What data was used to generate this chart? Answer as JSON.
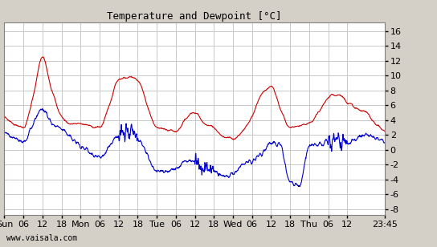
{
  "title": "Temperature and Dewpoint [°C]",
  "yticks": [
    -8,
    -6,
    -4,
    -2,
    0,
    2,
    4,
    6,
    8,
    10,
    12,
    14,
    16
  ],
  "ylim": [
    -8.8,
    17.2
  ],
  "watermark": "www.vaisala.com",
  "temp_color": "#cc0000",
  "dew_color": "#0000cc",
  "bg_color": "#d4d0c8",
  "plot_bg": "#ffffff",
  "grid_color": "#c8c8c8",
  "line_width": 0.8,
  "temp_knots_t": [
    0,
    3,
    6,
    9,
    12,
    15,
    18,
    21,
    24,
    27,
    30,
    33,
    36,
    39,
    42,
    45,
    48,
    51,
    54,
    57,
    60,
    63,
    66,
    69,
    72,
    75,
    78,
    81,
    84,
    87,
    90,
    93,
    96,
    99,
    102,
    105,
    108,
    111,
    114,
    117,
    119.75
  ],
  "temp_knots_v": [
    4.5,
    3.5,
    3.0,
    7.0,
    12.5,
    8.0,
    4.5,
    3.5,
    3.5,
    3.2,
    3.0,
    6.0,
    9.5,
    9.8,
    9.5,
    6.0,
    3.0,
    2.8,
    2.5,
    4.0,
    5.0,
    3.5,
    3.0,
    1.8,
    1.5,
    2.5,
    4.5,
    7.5,
    8.5,
    5.5,
    3.0,
    3.2,
    3.5,
    5.0,
    7.0,
    7.5,
    6.5,
    5.5,
    5.0,
    3.5,
    2.5
  ],
  "dew_knots_t": [
    0,
    3,
    6,
    9,
    12,
    15,
    18,
    21,
    24,
    27,
    30,
    33,
    36,
    39,
    42,
    45,
    48,
    51,
    54,
    57,
    60,
    63,
    66,
    69,
    72,
    75,
    78,
    81,
    84,
    87,
    90,
    93,
    96,
    99,
    102,
    105,
    108,
    111,
    114,
    117,
    119.75
  ],
  "dew_knots_v": [
    2.5,
    1.5,
    1.0,
    3.5,
    5.5,
    3.5,
    3.0,
    1.5,
    0.5,
    -0.5,
    -1.0,
    0.5,
    2.0,
    2.2,
    1.5,
    -0.5,
    -3.0,
    -2.8,
    -2.5,
    -1.5,
    -1.5,
    -2.5,
    -3.0,
    -3.5,
    -3.2,
    -2.0,
    -1.5,
    -0.5,
    1.0,
    0.5,
    -4.5,
    -4.8,
    0.5,
    0.8,
    1.0,
    1.0,
    0.8,
    1.5,
    2.0,
    1.5,
    1.0
  ],
  "xtick_hours": [
    0,
    6,
    12,
    18,
    24,
    30,
    36,
    42,
    48,
    54,
    60,
    66,
    72,
    78,
    84,
    90,
    96,
    102,
    108,
    119.75
  ],
  "xtick_labels": [
    "Sun",
    "06",
    "12",
    "18",
    "Mon",
    "06",
    "12",
    "18",
    "Tue",
    "06",
    "12",
    "18",
    "Wed",
    "06",
    "12",
    "18",
    "Thu",
    "06",
    "12",
    "23:45"
  ]
}
